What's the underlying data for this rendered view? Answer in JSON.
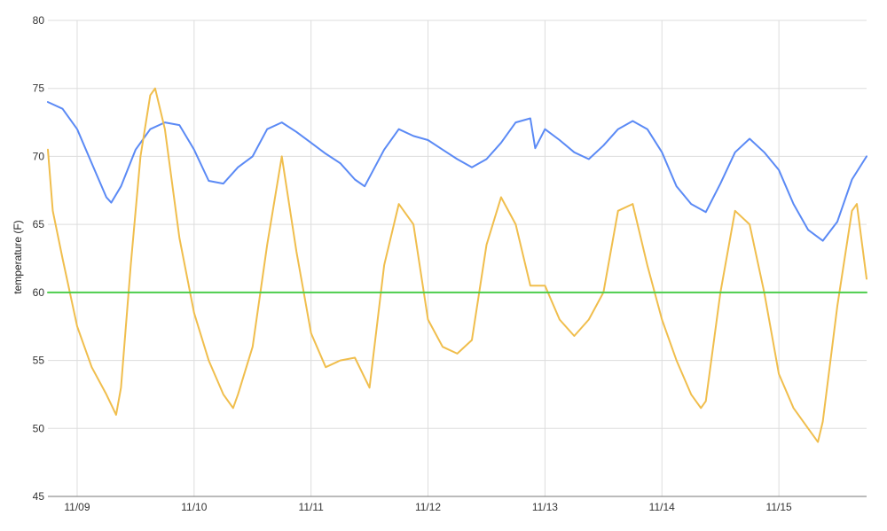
{
  "chart_data": {
    "type": "line",
    "title": "",
    "xlabel": "",
    "ylabel": "temperature (F)",
    "x_type": "time",
    "x_range": [
      "11/08 18:00",
      "11/15 18:00"
    ],
    "ylim": [
      45,
      80
    ],
    "y_ticks": [
      45,
      50,
      55,
      60,
      65,
      70,
      75,
      80
    ],
    "x_ticks": [
      "11/09",
      "11/10",
      "11/11",
      "11/12",
      "11/13",
      "11/14",
      "11/15"
    ],
    "grid": true,
    "legend": "none",
    "series": [
      {
        "color": "#5b8af5",
        "points": [
          [
            "11/08 18:00",
            74.0
          ],
          [
            "11/08 21:00",
            73.5
          ],
          [
            "11/09 00:00",
            72.0
          ],
          [
            "11/09 03:00",
            69.5
          ],
          [
            "11/09 06:00",
            67.0
          ],
          [
            "11/09 07:00",
            66.6
          ],
          [
            "11/09 09:00",
            67.8
          ],
          [
            "11/09 12:00",
            70.5
          ],
          [
            "11/09 15:00",
            72.0
          ],
          [
            "11/09 18:00",
            72.5
          ],
          [
            "11/09 21:00",
            72.3
          ],
          [
            "11/10 00:00",
            70.5
          ],
          [
            "11/10 03:00",
            68.2
          ],
          [
            "11/10 06:00",
            68.0
          ],
          [
            "11/10 09:00",
            69.2
          ],
          [
            "11/10 12:00",
            70.0
          ],
          [
            "11/10 15:00",
            72.0
          ],
          [
            "11/10 18:00",
            72.5
          ],
          [
            "11/10 21:00",
            71.8
          ],
          [
            "11/11 00:00",
            71.0
          ],
          [
            "11/11 03:00",
            70.2
          ],
          [
            "11/11 06:00",
            69.5
          ],
          [
            "11/11 09:00",
            68.3
          ],
          [
            "11/11 11:00",
            67.8
          ],
          [
            "11/11 15:00",
            70.5
          ],
          [
            "11/11 18:00",
            72.0
          ],
          [
            "11/11 21:00",
            71.5
          ],
          [
            "11/12 00:00",
            71.2
          ],
          [
            "11/12 03:00",
            70.5
          ],
          [
            "11/12 06:00",
            69.8
          ],
          [
            "11/12 09:00",
            69.2
          ],
          [
            "11/12 12:00",
            69.8
          ],
          [
            "11/12 15:00",
            71.0
          ],
          [
            "11/12 18:00",
            72.5
          ],
          [
            "11/12 21:00",
            72.8
          ],
          [
            "11/12 22:00",
            70.6
          ],
          [
            "11/13 00:00",
            72.0
          ],
          [
            "11/13 03:00",
            71.2
          ],
          [
            "11/13 06:00",
            70.3
          ],
          [
            "11/13 09:00",
            69.8
          ],
          [
            "11/13 12:00",
            70.8
          ],
          [
            "11/13 15:00",
            72.0
          ],
          [
            "11/13 18:00",
            72.6
          ],
          [
            "11/13 21:00",
            72.0
          ],
          [
            "11/14 00:00",
            70.3
          ],
          [
            "11/14 03:00",
            67.8
          ],
          [
            "11/14 06:00",
            66.5
          ],
          [
            "11/14 09:00",
            65.9
          ],
          [
            "11/14 12:00",
            68.0
          ],
          [
            "11/14 15:00",
            70.3
          ],
          [
            "11/14 18:00",
            71.3
          ],
          [
            "11/14 21:00",
            70.3
          ],
          [
            "11/15 00:00",
            69.0
          ],
          [
            "11/15 03:00",
            66.5
          ],
          [
            "11/15 06:00",
            64.6
          ],
          [
            "11/15 09:00",
            63.8
          ],
          [
            "11/15 12:00",
            65.2
          ],
          [
            "11/15 15:00",
            68.3
          ],
          [
            "11/15 18:00",
            70.0
          ]
        ]
      },
      {
        "color": "#f0be4d",
        "points": [
          [
            "11/08 18:00",
            70.5
          ],
          [
            "11/08 19:00",
            66.0
          ],
          [
            "11/08 21:00",
            62.5
          ],
          [
            "11/09 00:00",
            57.5
          ],
          [
            "11/09 03:00",
            54.5
          ],
          [
            "11/09 06:00",
            52.5
          ],
          [
            "11/09 08:00",
            51.0
          ],
          [
            "11/09 09:00",
            53.0
          ],
          [
            "11/09 11:00",
            62.0
          ],
          [
            "11/09 13:00",
            70.0
          ],
          [
            "11/09 15:00",
            74.5
          ],
          [
            "11/09 16:00",
            75.0
          ],
          [
            "11/09 18:00",
            72.0
          ],
          [
            "11/09 21:00",
            64.0
          ],
          [
            "11/10 00:00",
            58.5
          ],
          [
            "11/10 03:00",
            55.0
          ],
          [
            "11/10 06:00",
            52.5
          ],
          [
            "11/10 08:00",
            51.5
          ],
          [
            "11/10 09:00",
            52.5
          ],
          [
            "11/10 12:00",
            56.0
          ],
          [
            "11/10 15:00",
            63.5
          ],
          [
            "11/10 18:00",
            70.0
          ],
          [
            "11/10 21:00",
            63.0
          ],
          [
            "11/11 00:00",
            57.0
          ],
          [
            "11/11 03:00",
            54.5
          ],
          [
            "11/11 06:00",
            55.0
          ],
          [
            "11/11 09:00",
            55.2
          ],
          [
            "11/11 12:00",
            53.0
          ],
          [
            "11/11 15:00",
            62.0
          ],
          [
            "11/11 18:00",
            66.5
          ],
          [
            "11/11 21:00",
            65.0
          ],
          [
            "11/12 00:00",
            58.0
          ],
          [
            "11/12 03:00",
            56.0
          ],
          [
            "11/12 06:00",
            55.5
          ],
          [
            "11/12 09:00",
            56.5
          ],
          [
            "11/12 12:00",
            63.5
          ],
          [
            "11/12 15:00",
            67.0
          ],
          [
            "11/12 18:00",
            65.0
          ],
          [
            "11/12 21:00",
            60.5
          ],
          [
            "11/13 00:00",
            60.5
          ],
          [
            "11/13 03:00",
            58.0
          ],
          [
            "11/13 06:00",
            56.8
          ],
          [
            "11/13 09:00",
            58.0
          ],
          [
            "11/13 12:00",
            60.0
          ],
          [
            "11/13 15:00",
            66.0
          ],
          [
            "11/13 18:00",
            66.5
          ],
          [
            "11/13 21:00",
            62.0
          ],
          [
            "11/14 00:00",
            58.0
          ],
          [
            "11/14 03:00",
            55.0
          ],
          [
            "11/14 06:00",
            52.5
          ],
          [
            "11/14 08:00",
            51.5
          ],
          [
            "11/14 09:00",
            52.0
          ],
          [
            "11/14 12:00",
            60.0
          ],
          [
            "11/14 15:00",
            66.0
          ],
          [
            "11/14 18:00",
            65.0
          ],
          [
            "11/14 21:00",
            60.0
          ],
          [
            "11/15 00:00",
            54.0
          ],
          [
            "11/15 03:00",
            51.5
          ],
          [
            "11/15 06:00",
            50.0
          ],
          [
            "11/15 08:00",
            49.0
          ],
          [
            "11/15 09:00",
            50.5
          ],
          [
            "11/15 12:00",
            59.0
          ],
          [
            "11/15 15:00",
            66.0
          ],
          [
            "11/15 16:00",
            66.5
          ],
          [
            "11/15 18:00",
            61.0
          ]
        ]
      },
      {
        "color": "#4ccd4c",
        "points": [
          [
            "11/08 18:00",
            60.0
          ],
          [
            "11/15 18:00",
            60.0
          ]
        ]
      }
    ]
  }
}
